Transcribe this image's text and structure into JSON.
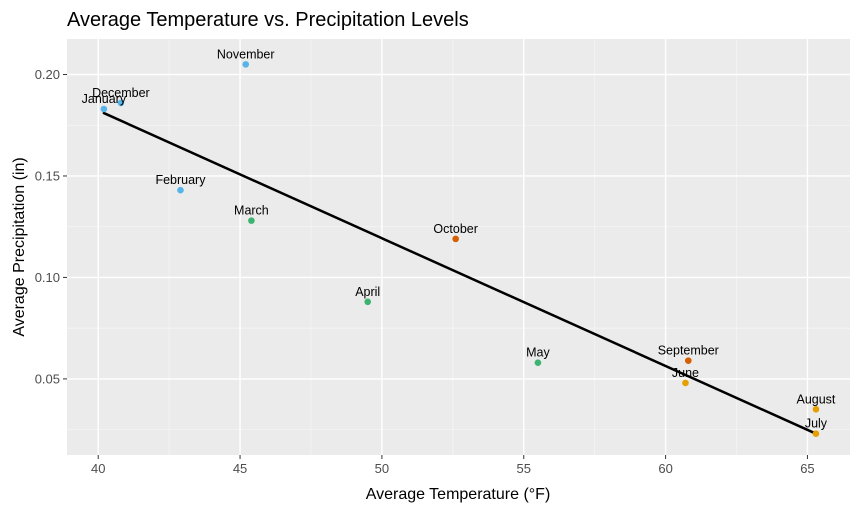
{
  "chart_data": {
    "type": "scatter",
    "title": "Average Temperature vs. Precipitation Levels",
    "xlabel": "Average Temperature (°F)",
    "ylabel": "Average Precipitation (in)",
    "xlim": [
      38.9,
      66.5
    ],
    "ylim": [
      0.0125,
      0.2175
    ],
    "xticks": [
      40,
      45,
      50,
      55,
      60,
      65
    ],
    "xtick_labels": [
      "40",
      "45",
      "50",
      "55",
      "60",
      "65"
    ],
    "yticks": [
      0.05,
      0.1,
      0.15,
      0.2
    ],
    "ytick_labels": [
      "0.05",
      "0.10",
      "0.15",
      "0.20"
    ],
    "grid": true,
    "legend": "none",
    "background": "#ebebeb",
    "points": [
      {
        "label": "January",
        "x": 40.2,
        "y": 0.183,
        "color": "#56b4e9"
      },
      {
        "label": "February",
        "x": 42.9,
        "y": 0.143,
        "color": "#56b4e9"
      },
      {
        "label": "March",
        "x": 45.4,
        "y": 0.128,
        "color": "#3cb371"
      },
      {
        "label": "April",
        "x": 49.5,
        "y": 0.088,
        "color": "#3cb371"
      },
      {
        "label": "May",
        "x": 55.5,
        "y": 0.058,
        "color": "#3cb371"
      },
      {
        "label": "June",
        "x": 60.7,
        "y": 0.048,
        "color": "#e69f00"
      },
      {
        "label": "July",
        "x": 65.3,
        "y": 0.023,
        "color": "#e69f00"
      },
      {
        "label": "August",
        "x": 65.3,
        "y": 0.035,
        "color": "#e69f00"
      },
      {
        "label": "September",
        "x": 60.8,
        "y": 0.059,
        "color": "#d55e00"
      },
      {
        "label": "October",
        "x": 52.6,
        "y": 0.119,
        "color": "#d55e00"
      },
      {
        "label": "November",
        "x": 45.2,
        "y": 0.205,
        "color": "#56b4e9"
      },
      {
        "label": "December",
        "x": 40.8,
        "y": 0.186,
        "color": "#56b4e9"
      }
    ],
    "trend_line": {
      "x": [
        40.2,
        65.3
      ],
      "y": [
        0.181,
        0.023
      ],
      "color": "#000000"
    }
  }
}
